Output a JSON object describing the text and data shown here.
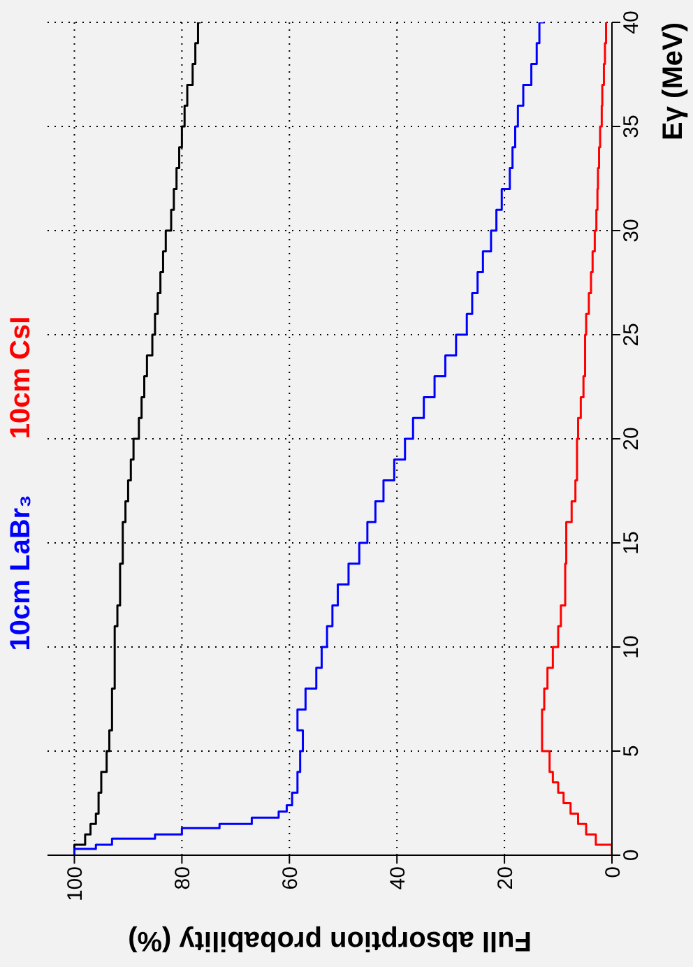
{
  "chart_data": {
    "type": "step",
    "xlabel": "Full absorption probability (%)",
    "ylabel": "Eγ (MeV)",
    "xlim": [
      105,
      0
    ],
    "xticks": [
      100,
      80,
      60,
      40,
      20,
      0
    ],
    "ylim": [
      0,
      40
    ],
    "yticks": [
      0,
      5,
      10,
      15,
      20,
      25,
      30,
      35,
      40
    ],
    "grid": true,
    "legend": "left",
    "marker": "none",
    "series": [
      {
        "color": "#000000",
        "values": [
          0,
          0.5,
          1,
          1.5,
          2,
          3,
          4,
          5,
          6,
          7,
          8,
          9,
          10,
          11,
          12,
          13,
          14,
          15,
          16,
          17,
          18,
          19,
          20,
          21,
          22,
          23,
          24,
          25,
          26,
          27,
          28,
          29,
          30,
          31,
          32,
          33,
          34,
          35,
          36,
          37,
          38,
          39,
          40
        ],
        "x": [
          100,
          98,
          97,
          96,
          95.5,
          95,
          94,
          93.5,
          93,
          93,
          92.5,
          92.5,
          92.5,
          92,
          91.5,
          91.5,
          91,
          91,
          90.5,
          90,
          89.5,
          89,
          88,
          87.5,
          87,
          86.5,
          85.5,
          85,
          84.5,
          84,
          83.5,
          83,
          82,
          81.5,
          81,
          80.5,
          80,
          79.5,
          79,
          78,
          77.5,
          77,
          76.5
        ]
      },
      {
        "name": "10cm LaBr₃",
        "color": "#0000ff",
        "values": [
          0,
          0.3,
          0.5,
          0.8,
          1,
          1.3,
          1.5,
          1.8,
          2.1,
          2.4,
          3,
          4,
          5,
          6,
          7,
          8,
          9,
          10,
          11,
          12,
          13,
          14,
          15,
          16,
          17,
          18,
          19,
          20,
          21,
          22,
          23,
          24,
          25,
          26,
          27,
          28,
          29,
          30,
          31,
          32,
          33,
          34,
          35,
          36,
          37,
          38,
          39,
          40
        ],
        "x": [
          100,
          96,
          93,
          85,
          80,
          73,
          67,
          62,
          60.5,
          59.5,
          58.5,
          58,
          57.5,
          58.5,
          57,
          55,
          54,
          53,
          52,
          51,
          49,
          47,
          45.5,
          44,
          42.5,
          40.5,
          38.5,
          37,
          35,
          33,
          31,
          29,
          27,
          26,
          25,
          24,
          22.5,
          21.5,
          20.5,
          19,
          18.5,
          18,
          17.5,
          16.5,
          15,
          14,
          13.5,
          12.5
        ]
      },
      {
        "name": "10cm CsI",
        "color": "#ff0000",
        "values": [
          0,
          0.5,
          1,
          1.5,
          2,
          2.5,
          3,
          3.5,
          4,
          5,
          6,
          7,
          8,
          9,
          10,
          11,
          12,
          13,
          14,
          15,
          16,
          17,
          18,
          19,
          20,
          21,
          22,
          23,
          24,
          25,
          26,
          27,
          28,
          29,
          30,
          31,
          32,
          33,
          34,
          35,
          36,
          37,
          38,
          39,
          40
        ],
        "x": [
          0,
          3,
          4.8,
          6.3,
          7.7,
          9,
          10,
          11,
          11.6,
          13,
          13,
          12.6,
          12,
          11,
          10,
          9.5,
          8.7,
          8.7,
          8.5,
          8.5,
          7.5,
          6.8,
          6.5,
          6.5,
          6.3,
          5.8,
          5.3,
          5,
          5,
          4.8,
          4.3,
          3.9,
          3.6,
          3.2,
          2.9,
          2.7,
          2.6,
          2.4,
          2.2,
          1.9,
          1.8,
          1.5,
          1.3,
          1.1,
          1
        ]
      }
    ]
  }
}
